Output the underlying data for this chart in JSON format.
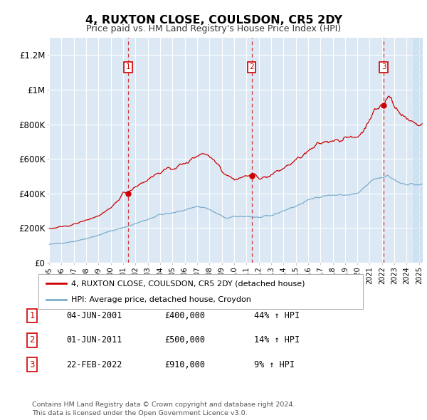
{
  "title": "4, RUXTON CLOSE, COULSDON, CR5 2DY",
  "subtitle": "Price paid vs. HM Land Registry's House Price Index (HPI)",
  "background_color": "#ffffff",
  "plot_bg_color": "#dce9f5",
  "grid_color": "#ffffff",
  "ylim": [
    0,
    1300000
  ],
  "yticks": [
    0,
    200000,
    400000,
    600000,
    800000,
    1000000,
    1200000
  ],
  "ytick_labels": [
    "£0",
    "£200K",
    "£400K",
    "£600K",
    "£800K",
    "£1M",
    "£1.2M"
  ],
  "xmin_year": 1995.0,
  "xmax_year": 2025.3,
  "sale_year_floats": [
    2001.42,
    2011.42,
    2022.14
  ],
  "sale_prices": [
    400000,
    500000,
    910000
  ],
  "sale_labels": [
    "1",
    "2",
    "3"
  ],
  "sale_label_info": [
    {
      "num": "1",
      "date": "04-JUN-2001",
      "price": "£400,000",
      "pct": "44% ↑ HPI"
    },
    {
      "num": "2",
      "date": "01-JUN-2011",
      "price": "£500,000",
      "pct": "14% ↑ HPI"
    },
    {
      "num": "3",
      "date": "22-FEB-2022",
      "price": "£910,000",
      "pct": "9% ↑ HPI"
    }
  ],
  "red_line_color": "#cc0000",
  "blue_line_color": "#7aadcc",
  "legend_label_red": "4, RUXTON CLOSE, COULSDON, CR5 2DY (detached house)",
  "legend_label_blue": "HPI: Average price, detached house, Croydon",
  "footer_text": "Contains HM Land Registry data © Crown copyright and database right 2024.\nThis data is licensed under the Open Government Licence v3.0.",
  "xtick_years": [
    1995,
    1996,
    1997,
    1998,
    1999,
    2000,
    2001,
    2002,
    2003,
    2004,
    2005,
    2006,
    2007,
    2008,
    2009,
    2010,
    2011,
    2012,
    2013,
    2014,
    2015,
    2016,
    2017,
    2018,
    2019,
    2020,
    2021,
    2022,
    2023,
    2024,
    2025
  ]
}
